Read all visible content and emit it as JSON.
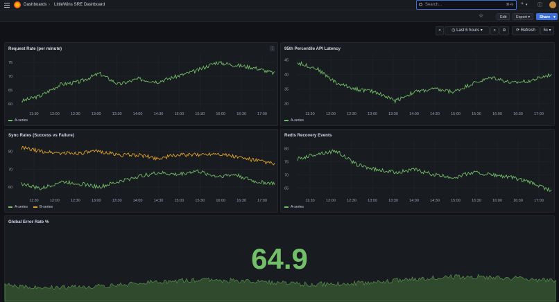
{
  "nav": {
    "breadcrumb_root": "Dashboards",
    "breadcrumb_sep": "›",
    "breadcrumb_current": "LittleWins SRE Dashboard",
    "search_placeholder": "Search...",
    "search_shortcut": "⌘+k"
  },
  "toolbar": {
    "edit_label": "Edit",
    "export_label": "Export",
    "share_label": "Share"
  },
  "time_controls": {
    "range_label": "Last 6 hours",
    "refresh_label": "Refresh",
    "refresh_interval": "5s"
  },
  "colors": {
    "series_a": "#73bf69",
    "series_b": "#e0a32a"
  },
  "panels": [
    {
      "title": "Request Rate (per minute)",
      "x_ticks": [
        "11:30",
        "12:00",
        "12:30",
        "13:00",
        "13:30",
        "14:00",
        "14:30",
        "15:00",
        "15:30",
        "16:00",
        "16:30",
        "17:00"
      ],
      "y_ticks": [
        "75",
        "70",
        "65",
        "60"
      ],
      "legend": [
        "A-series"
      ]
    },
    {
      "title": "95th Percentile API Latency",
      "x_ticks": [
        "11:30",
        "12:00",
        "12:30",
        "13:00",
        "13:30",
        "14:00",
        "14:30",
        "15:00",
        "15:30",
        "16:00",
        "16:30",
        "17:00"
      ],
      "y_ticks": [
        "45",
        "40",
        "35",
        "30"
      ],
      "legend": [
        "A-series"
      ]
    },
    {
      "title": "Sync Rates (Success vs Failure)",
      "x_ticks": [
        "11:30",
        "12:00",
        "12:30",
        "13:00",
        "13:30",
        "14:00",
        "14:30",
        "15:00",
        "15:30",
        "16:00",
        "16:30",
        "17:00"
      ],
      "y_ticks": [
        "80",
        "70",
        "60"
      ],
      "legend": [
        "A-series",
        "B-series"
      ]
    },
    {
      "title": "Redis Recovery Events",
      "x_ticks": [
        "11:30",
        "12:00",
        "12:30",
        "13:00",
        "13:30",
        "14:00",
        "14:30",
        "15:00",
        "15:30",
        "16:00",
        "16:30",
        "17:00"
      ],
      "y_ticks": [
        "80",
        "75",
        "70",
        "65"
      ],
      "legend": [
        "A-series"
      ]
    }
  ],
  "stat_panel": {
    "title": "Global Error Rate %",
    "value": "64.9"
  },
  "chart_data": [
    {
      "type": "line",
      "title": "Request Rate (per minute)",
      "x": [
        "11:15",
        "11:30",
        "12:00",
        "12:30",
        "13:00",
        "13:30",
        "14:00",
        "14:30",
        "15:00",
        "15:30",
        "16:00",
        "16:30",
        "17:00",
        "17:05"
      ],
      "ylim": [
        58,
        78
      ],
      "series": [
        {
          "name": "A-series",
          "values": [
            61,
            63,
            67,
            68,
            71,
            67,
            69,
            68,
            70,
            72,
            75,
            74,
            73,
            71
          ]
        }
      ]
    },
    {
      "type": "line",
      "title": "95th Percentile API Latency",
      "x": [
        "11:15",
        "11:30",
        "12:00",
        "12:30",
        "13:00",
        "13:30",
        "14:00",
        "14:30",
        "15:00",
        "15:30",
        "16:00",
        "16:30",
        "17:00",
        "17:05"
      ],
      "ylim": [
        28,
        47
      ],
      "series": [
        {
          "name": "A-series",
          "values": [
            44,
            42,
            37,
            35,
            34,
            31,
            34,
            35,
            34,
            37,
            39,
            37,
            38,
            40
          ]
        }
      ]
    },
    {
      "type": "line",
      "title": "Sync Rates (Success vs Failure)",
      "x": [
        "11:15",
        "11:30",
        "12:00",
        "12:30",
        "13:00",
        "13:30",
        "14:00",
        "14:30",
        "15:00",
        "15:30",
        "16:00",
        "16:30",
        "17:00",
        "17:05"
      ],
      "ylim": [
        55,
        86
      ],
      "series": [
        {
          "name": "A-series",
          "values": [
            62,
            59,
            63,
            62,
            60,
            63,
            66,
            68,
            67,
            69,
            66,
            67,
            63,
            62
          ]
        },
        {
          "name": "B-series",
          "values": [
            82,
            80,
            79,
            79,
            80,
            78,
            78,
            76,
            78,
            78,
            79,
            77,
            75,
            73
          ]
        }
      ]
    },
    {
      "type": "line",
      "title": "Redis Recovery Events",
      "x": [
        "11:15",
        "11:30",
        "12:00",
        "12:30",
        "13:00",
        "13:30",
        "14:00",
        "14:30",
        "15:00",
        "15:30",
        "16:00",
        "16:30",
        "17:00",
        "17:05"
      ],
      "ylim": [
        62,
        83
      ],
      "series": [
        {
          "name": "A-series",
          "values": [
            76,
            78,
            79,
            74,
            72,
            71,
            72,
            70,
            69,
            71,
            70,
            69,
            67,
            64
          ]
        }
      ]
    }
  ]
}
